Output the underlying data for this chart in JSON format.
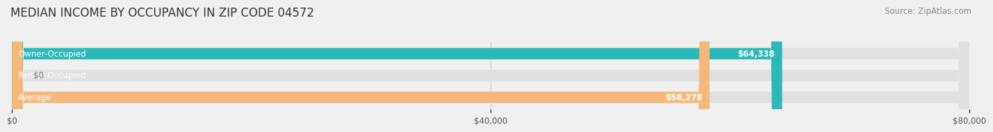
{
  "title": "MEDIAN INCOME BY OCCUPANCY IN ZIP CODE 04572",
  "source": "Source: ZipAtlas.com",
  "categories": [
    "Owner-Occupied",
    "Renter-Occupied",
    "Average"
  ],
  "values": [
    64338,
    0,
    58278
  ],
  "labels": [
    "$64,338",
    "$0",
    "$58,278"
  ],
  "bar_colors": [
    "#2ab8b8",
    "#c9b3d9",
    "#f5b87a"
  ],
  "background_color": "#f0f0f0",
  "bar_background_color": "#e0e0e0",
  "xlim": [
    0,
    80000
  ],
  "xticks": [
    0,
    40000,
    80000
  ],
  "xticklabels": [
    "$0",
    "$40,000",
    "$80,000"
  ],
  "title_fontsize": 12,
  "source_fontsize": 8.5,
  "label_fontsize": 8.5,
  "category_fontsize": 8.5,
  "bar_height": 0.52
}
